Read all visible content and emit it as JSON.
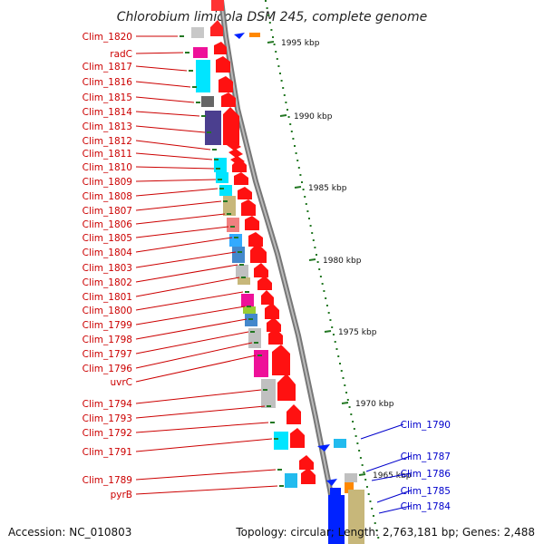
{
  "title": "Chlorobium limicola DSM 245, complete genome",
  "footer": {
    "accession": "Accession: NC_010803",
    "topology": "Topology: circular; Length: 2,763,181 bp; Genes: 2,488"
  },
  "colors": {
    "gene_label_left": "#cc0000",
    "gene_label_right": "#0000cc",
    "arrow_forward": "#ff0000",
    "arrow_reverse": "#0000ff",
    "backbone": "#999999",
    "tick": "#227722"
  },
  "scale_marks": [
    "1995 kbp",
    "1990 kbp",
    "1985 kbp",
    "1980 kbp",
    "1975 kbp",
    "1970 kbp",
    "1965 kbp"
  ],
  "left_genes": [
    "Clim_1820",
    "radC",
    "Clim_1817",
    "Clim_1816",
    "Clim_1815",
    "Clim_1814",
    "Clim_1813",
    "Clim_1812",
    "Clim_1811",
    "Clim_1810",
    "Clim_1809",
    "Clim_1808",
    "Clim_1807",
    "Clim_1806",
    "Clim_1805",
    "Clim_1804",
    "Clim_1803",
    "Clim_1802",
    "Clim_1801",
    "Clim_1800",
    "Clim_1799",
    "Clim_1798",
    "Clim_1797",
    "Clim_1796",
    "uvrC",
    "Clim_1794",
    "Clim_1793",
    "Clim_1792",
    "Clim_1791",
    "Clim_1789",
    "pyrB"
  ],
  "right_genes": [
    "Clim_1790",
    "Clim_1787",
    "Clim_1786",
    "Clim_1785",
    "Clim_1784"
  ]
}
